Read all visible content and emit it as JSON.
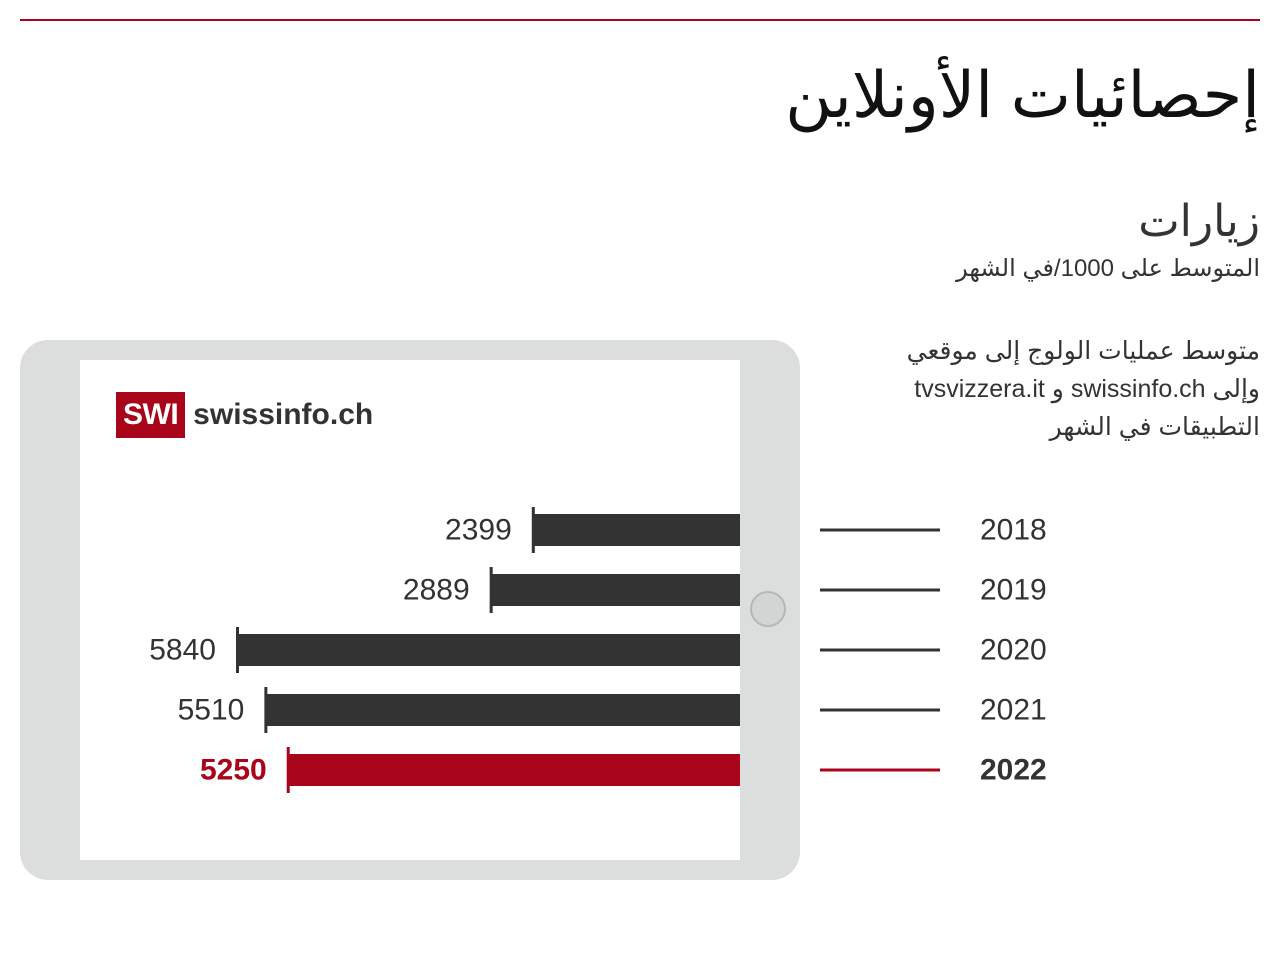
{
  "header": {
    "title": "إحصائيات الأونلاين",
    "subtitle": "زيارات",
    "unit": "المتوسط على 1000/في الشهر"
  },
  "description": {
    "line1": "متوسط عمليات الولوج إلى موقعي",
    "line2": "وإلى swissinfo.ch و tvsvizzera.it",
    "line3": "التطبيقات في الشهر"
  },
  "logo": {
    "badge": "SWI",
    "text": "swissinfo.ch"
  },
  "colors": {
    "accent": "#a8051b",
    "bar": "#333333",
    "tablet": "#dcdddd"
  },
  "chart_data": {
    "type": "bar",
    "orientation": "horizontal",
    "categories": [
      "2018",
      "2019",
      "2020",
      "2021",
      "2022"
    ],
    "values": [
      2399,
      2889,
      5840,
      5510,
      5250
    ],
    "data_labels": [
      "2399",
      "2889",
      "5840",
      "5510",
      "5250"
    ],
    "highlight_category": "2022",
    "bar_direction": "right-to-left",
    "xlim": [
      0,
      6000
    ],
    "grid": false
  }
}
